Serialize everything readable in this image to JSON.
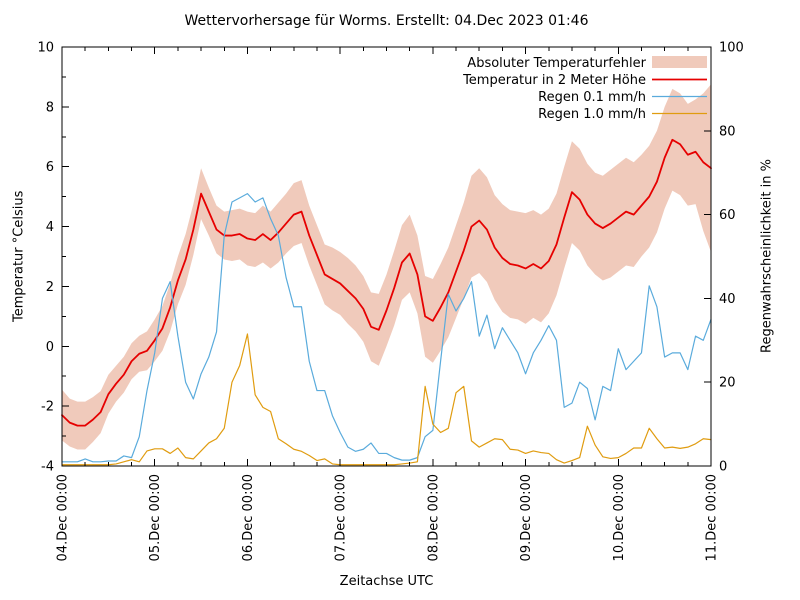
{
  "chart_data": {
    "type": "line",
    "title": "Wettervorhersage für Worms. Erstellt: 04.Dec 2023 01:46",
    "xlabel": "Zeitachse UTC",
    "ylabel_left": "Temperatur °Celsius",
    "ylabel_right": "Regenwahrscheinlichkeit in %",
    "grid": false,
    "legend_position": "top-right-inside",
    "x_unit": "hours since 04.Dec 00:00",
    "x_hours": [
      0,
      2,
      4,
      6,
      8,
      10,
      12,
      14,
      16,
      18,
      20,
      22,
      24,
      26,
      28,
      30,
      32,
      34,
      36,
      38,
      40,
      42,
      44,
      46,
      48,
      50,
      52,
      54,
      56,
      58,
      60,
      62,
      64,
      66,
      68,
      70,
      72,
      74,
      76,
      78,
      80,
      82,
      84,
      86,
      88,
      90,
      92,
      94,
      96,
      98,
      100,
      102,
      104,
      106,
      108,
      110,
      112,
      114,
      116,
      118,
      120,
      122,
      124,
      126,
      128,
      130,
      132,
      134,
      136,
      138,
      140,
      142,
      144,
      146,
      148,
      150,
      152,
      154,
      156,
      158,
      160,
      162,
      164,
      166,
      168
    ],
    "x_tick_hours": [
      0,
      24,
      48,
      72,
      96,
      120,
      144,
      168
    ],
    "x_tick_labels": [
      "04.Dec 00:00",
      "05.Dec 00:00",
      "06.Dec 00:00",
      "07.Dec 00:00",
      "08.Dec 00:00",
      "09.Dec 00:00",
      "10.Dec 00:00",
      "11.Dec 00:00"
    ],
    "x_minor_step_hours": 6,
    "y_left": {
      "min": -4,
      "max": 10,
      "ticks": [
        -4,
        -2,
        0,
        2,
        4,
        6,
        8,
        10
      ],
      "minor_step": 1
    },
    "y_right": {
      "min": 0,
      "max": 100,
      "ticks": [
        0,
        20,
        40,
        60,
        80,
        100
      ]
    },
    "series": [
      {
        "name": "Absoluter Temperaturfehler",
        "type": "band",
        "axis": "left",
        "color": "#f0cabb",
        "upper": [
          -1.45,
          -1.75,
          -1.85,
          -1.85,
          -1.7,
          -1.5,
          -0.95,
          -0.65,
          -0.35,
          0.1,
          0.35,
          0.5,
          0.9,
          1.35,
          2.1,
          3.0,
          3.75,
          4.75,
          5.95,
          5.3,
          4.7,
          4.5,
          4.55,
          4.6,
          4.5,
          4.45,
          4.7,
          4.5,
          4.8,
          5.1,
          5.45,
          5.55,
          4.7,
          4.05,
          3.4,
          3.3,
          3.15,
          2.95,
          2.7,
          2.35,
          1.8,
          1.75,
          2.4,
          3.2,
          4.05,
          4.4,
          3.7,
          2.35,
          2.25,
          2.75,
          3.3,
          4.05,
          4.8,
          5.7,
          5.95,
          5.65,
          5.05,
          4.75,
          4.55,
          4.5,
          4.45,
          4.55,
          4.4,
          4.6,
          5.1,
          6.0,
          6.85,
          6.6,
          6.1,
          5.8,
          5.7,
          5.9,
          6.1,
          6.3,
          6.15,
          6.4,
          6.7,
          7.2,
          8.0,
          8.6,
          8.45,
          8.1,
          8.25,
          8.45,
          8.75
        ],
        "lower": [
          -3.15,
          -3.35,
          -3.45,
          -3.45,
          -3.2,
          -2.9,
          -2.25,
          -1.85,
          -1.55,
          -1.1,
          -0.85,
          -0.8,
          -0.5,
          -0.15,
          0.5,
          1.4,
          2.05,
          3.05,
          4.25,
          3.7,
          3.1,
          2.9,
          2.85,
          2.9,
          2.7,
          2.65,
          2.8,
          2.6,
          2.8,
          3.1,
          3.35,
          3.45,
          2.7,
          2.05,
          1.4,
          1.2,
          1.05,
          0.75,
          0.5,
          0.15,
          -0.5,
          -0.65,
          0.0,
          0.7,
          1.55,
          1.8,
          1.1,
          -0.35,
          -0.55,
          -0.15,
          0.3,
          0.95,
          1.6,
          2.3,
          2.45,
          2.15,
          1.55,
          1.15,
          0.95,
          0.9,
          0.75,
          0.95,
          0.8,
          1.1,
          1.7,
          2.6,
          3.45,
          3.2,
          2.7,
          2.4,
          2.2,
          2.3,
          2.5,
          2.7,
          2.65,
          3.0,
          3.3,
          3.8,
          4.6,
          5.2,
          5.05,
          4.7,
          4.75,
          3.85,
          3.15
        ]
      },
      {
        "name": "Temperatur in 2 Meter Höhe",
        "type": "line",
        "axis": "left",
        "color": "#e60000",
        "values": [
          -2.3,
          -2.55,
          -2.65,
          -2.65,
          -2.45,
          -2.2,
          -1.6,
          -1.25,
          -0.95,
          -0.5,
          -0.25,
          -0.15,
          0.2,
          0.6,
          1.3,
          2.2,
          2.9,
          3.9,
          5.1,
          4.5,
          3.9,
          3.7,
          3.7,
          3.75,
          3.6,
          3.55,
          3.75,
          3.55,
          3.8,
          4.1,
          4.4,
          4.5,
          3.7,
          3.05,
          2.4,
          2.25,
          2.1,
          1.85,
          1.6,
          1.25,
          0.65,
          0.55,
          1.2,
          1.95,
          2.8,
          3.1,
          2.4,
          1.0,
          0.85,
          1.3,
          1.8,
          2.5,
          3.2,
          4.0,
          4.2,
          3.9,
          3.3,
          2.95,
          2.75,
          2.7,
          2.6,
          2.75,
          2.6,
          2.85,
          3.4,
          4.3,
          5.15,
          4.9,
          4.4,
          4.1,
          3.95,
          4.1,
          4.3,
          4.5,
          4.4,
          4.7,
          5.0,
          5.5,
          6.3,
          6.9,
          6.75,
          6.4,
          6.5,
          6.15,
          5.95
        ]
      },
      {
        "name": "Regen 0.1 mm/h",
        "type": "line",
        "axis": "right",
        "color": "#5aabdc",
        "values": [
          1,
          1,
          1,
          1.7,
          1,
          1,
          1.2,
          1.2,
          2.4,
          2,
          7,
          18,
          27,
          40,
          44,
          31,
          20,
          16,
          22,
          26,
          32,
          55,
          63,
          64,
          65,
          63,
          64,
          59,
          55,
          45,
          38,
          38,
          25,
          18,
          18,
          12,
          8,
          4.5,
          3.5,
          4,
          5.5,
          3,
          3,
          2,
          1.4,
          1.4,
          2,
          7,
          8.5,
          25,
          41,
          37,
          40,
          44,
          31,
          36,
          28,
          33,
          30,
          27,
          22,
          27,
          30,
          33.5,
          30,
          14,
          15,
          20,
          18.5,
          11,
          19,
          18,
          28,
          23,
          25,
          27,
          43,
          38,
          26,
          27,
          27,
          23,
          31,
          30,
          35
        ]
      },
      {
        "name": "Regen 1.0 mm/h",
        "type": "line",
        "axis": "right",
        "color": "#e09c10",
        "values": [
          0.3,
          0.3,
          0.3,
          0.3,
          0.3,
          0.3,
          0.3,
          0.5,
          1,
          1.5,
          1,
          3.6,
          4.1,
          4.1,
          3,
          4.3,
          2,
          1.7,
          3.6,
          5.5,
          6.5,
          9,
          20,
          24,
          31.5,
          17,
          14,
          13,
          6.5,
          5.3,
          4,
          3.5,
          2.5,
          1.3,
          1.7,
          0.5,
          0.3,
          0.3,
          0.3,
          0.3,
          0.3,
          0.3,
          0.3,
          0.3,
          0.5,
          0.7,
          1,
          19,
          10,
          8,
          9,
          17.5,
          19,
          6,
          4.5,
          5.5,
          6.5,
          6.3,
          4,
          3.8,
          3,
          3.6,
          3.2,
          3,
          1.5,
          0.7,
          1.3,
          2,
          9.5,
          5,
          2.2,
          1.8,
          2,
          3,
          4.3,
          4.3,
          9,
          6.5,
          4.3,
          4.5,
          4.2,
          4.5,
          5.3,
          6.5,
          6.3
        ]
      }
    ],
    "colors": {
      "background": "#ffffff",
      "axis": "#000000",
      "text": "#000000",
      "error_band": "#f0cabb",
      "temperature": "#e60000",
      "rain_01": "#5aabdc",
      "rain_10": "#e09c10"
    }
  }
}
